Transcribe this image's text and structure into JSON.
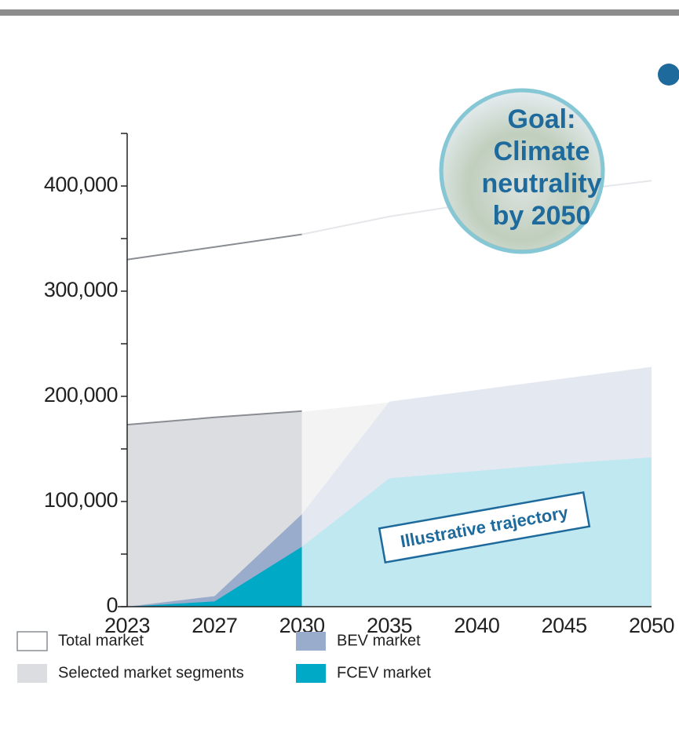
{
  "chart_data": {
    "type": "area",
    "categories": [
      "2023",
      "2027",
      "2030",
      "2035",
      "2040",
      "2045",
      "2050"
    ],
    "projection_from": "2030",
    "series": [
      {
        "name": "Total market",
        "color": "#ffffff",
        "line_color": "#8a8d93",
        "faded_color": "#ffffff",
        "faded_line_color": "#e6e7ea",
        "values": [
          330000,
          342000,
          354000,
          371000,
          384000,
          395000,
          405000
        ]
      },
      {
        "name": "Selected market segments",
        "color": "#dcdde1",
        "line_color": "#8a8d93",
        "faded_color": "#f3f3f4",
        "faded_line_color": "#ffffff",
        "values": [
          173000,
          180000,
          186000,
          195000,
          206000,
          217000,
          228000
        ]
      },
      {
        "name": "BEV market",
        "color": "#9aaccb",
        "faded_color": "#e3e8f1",
        "values": [
          0,
          10000,
          88000,
          195000,
          206000,
          217000,
          228000
        ]
      },
      {
        "name": "FCEV market",
        "color": "#00a9c5",
        "faded_color": "#bfe8f1",
        "values": [
          0,
          5000,
          57000,
          122000,
          129000,
          136000,
          142000
        ]
      }
    ],
    "ylim": [
      0,
      450000
    ],
    "yticks": [
      0,
      {
        "value": 100000,
        "label": "100,000"
      },
      {
        "value": 200000,
        "label": "200,000"
      },
      {
        "value": 300000,
        "label": "300,000"
      },
      {
        "value": 400000,
        "label": "400,000"
      }
    ],
    "minor_yticks": [
      50000,
      150000,
      250000,
      350000,
      450000
    ],
    "goal_lines": [
      "Goal:",
      "Climate",
      "neutrality",
      "by 2050"
    ],
    "annotation": "Illustrative trajectory"
  }
}
